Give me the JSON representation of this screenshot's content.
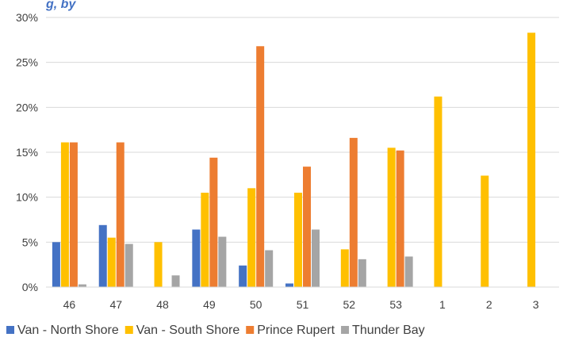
{
  "chart_data": {
    "type": "bar",
    "title_fragment": "g, by",
    "categories": [
      "46",
      "47",
      "48",
      "49",
      "50",
      "51",
      "52",
      "53",
      "1",
      "2",
      "3"
    ],
    "series": [
      {
        "name": "Van - North Shore",
        "color": "#4472C4",
        "values": [
          5.0,
          6.9,
          0,
          6.4,
          2.4,
          0.4,
          0,
          0,
          0,
          0,
          0
        ]
      },
      {
        "name": "Van - South Shore",
        "color": "#FFC000",
        "values": [
          16.1,
          5.5,
          5.0,
          10.5,
          11.0,
          10.5,
          4.2,
          15.5,
          21.2,
          12.4,
          28.3
        ]
      },
      {
        "name": "Prince Rupert",
        "color": "#ED7D31",
        "values": [
          16.1,
          16.1,
          0,
          14.4,
          26.8,
          13.4,
          16.6,
          15.2,
          0,
          0,
          0
        ]
      },
      {
        "name": "Thunder Bay",
        "color": "#A5A5A5",
        "values": [
          0.3,
          4.8,
          1.3,
          5.6,
          4.1,
          6.4,
          3.1,
          3.4,
          0,
          0,
          0
        ]
      }
    ],
    "yticks": [
      "0%",
      "5%",
      "10%",
      "15%",
      "20%",
      "25%",
      "30%"
    ],
    "ylim": [
      0,
      30
    ],
    "grid": true,
    "legend_position": "bottom"
  }
}
